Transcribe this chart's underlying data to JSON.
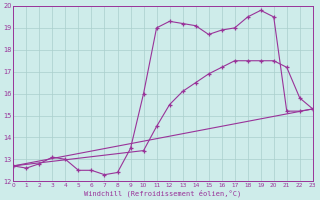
{
  "xlabel": "Windchill (Refroidissement éolien,°C)",
  "background_color": "#ceecea",
  "grid_color": "#aacfcc",
  "line_color": "#993399",
  "xlim": [
    0,
    23
  ],
  "ylim": [
    12,
    20
  ],
  "xticks": [
    0,
    1,
    2,
    3,
    4,
    5,
    6,
    7,
    8,
    9,
    10,
    11,
    12,
    13,
    14,
    15,
    16,
    17,
    18,
    19,
    20,
    21,
    22,
    23
  ],
  "yticks": [
    12,
    13,
    14,
    15,
    16,
    17,
    18,
    19,
    20
  ],
  "series1_x": [
    0,
    1,
    2,
    3,
    4,
    5,
    6,
    7,
    8,
    9,
    10,
    11,
    12,
    13,
    14,
    15,
    16,
    17,
    18,
    19,
    20,
    21,
    22,
    23
  ],
  "series1_y": [
    12.7,
    12.6,
    12.8,
    13.1,
    13.0,
    12.5,
    12.5,
    12.3,
    12.4,
    13.5,
    16.0,
    19.0,
    19.3,
    19.2,
    19.1,
    18.7,
    18.9,
    19.0,
    19.5,
    19.8,
    19.5,
    15.2,
    15.2,
    15.3
  ],
  "series2_x": [
    0,
    10,
    11,
    12,
    13,
    14,
    15,
    16,
    17,
    18,
    19,
    20,
    21,
    22,
    23
  ],
  "series2_y": [
    12.7,
    13.4,
    14.5,
    15.5,
    16.1,
    16.5,
    16.9,
    17.2,
    17.5,
    17.5,
    17.5,
    17.5,
    17.2,
    15.8,
    15.3
  ],
  "series3_x": [
    0,
    23
  ],
  "series3_y": [
    12.7,
    15.3
  ]
}
